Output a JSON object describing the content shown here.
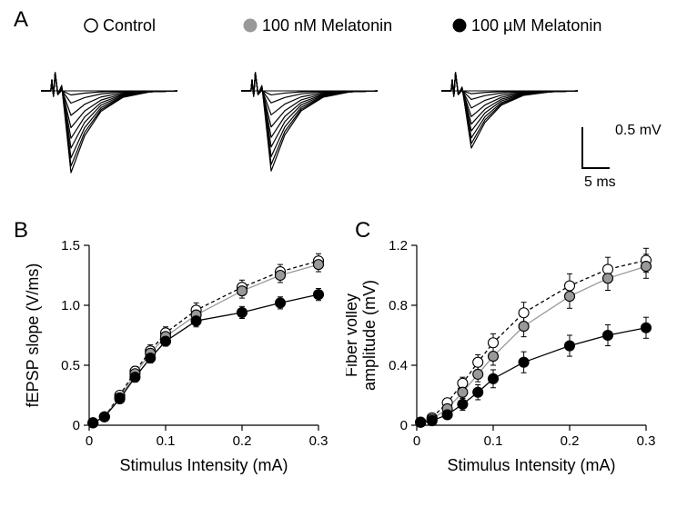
{
  "legend": {
    "items": [
      {
        "label": "Control",
        "fill": "#ffffff",
        "stroke": "#000000"
      },
      {
        "label": "100 nM Melatonin",
        "fill": "#999999",
        "stroke": "#999999"
      },
      {
        "label": "100 µM Melatonin",
        "fill": "#000000",
        "stroke": "#000000"
      }
    ],
    "fontsize": 18,
    "marker_radius": 7
  },
  "panels": {
    "A": {
      "label": "A"
    },
    "B": {
      "label": "B",
      "type": "scatter-line",
      "xlabel": "Stimulus Intensity (mA)",
      "ylabel": "fEPSP slope (V/ms)",
      "label_fontsize": 18,
      "tick_fontsize": 15,
      "xlim": [
        0,
        0.3
      ],
      "ylim": [
        0,
        1.5
      ],
      "xticks": [
        0,
        0.1,
        0.2,
        0.3
      ],
      "yticks": [
        0,
        0.5,
        1.0,
        1.5
      ],
      "marker_radius": 5.5,
      "series": [
        {
          "name": "control",
          "fill": "#ffffff",
          "stroke_line": "#000000",
          "line_dash": "4,3",
          "x": [
            0.005,
            0.02,
            0.04,
            0.06,
            0.08,
            0.1,
            0.14,
            0.2,
            0.25,
            0.3
          ],
          "y": [
            0.02,
            0.07,
            0.25,
            0.45,
            0.62,
            0.77,
            0.96,
            1.15,
            1.28,
            1.37
          ],
          "err": [
            0.02,
            0.02,
            0.03,
            0.04,
            0.05,
            0.05,
            0.06,
            0.06,
            0.06,
            0.06
          ]
        },
        {
          "name": "100nM",
          "fill": "#999999",
          "stroke_line": "#999999",
          "line_dash": "",
          "x": [
            0.005,
            0.02,
            0.04,
            0.06,
            0.08,
            0.1,
            0.14,
            0.2,
            0.25,
            0.3
          ],
          "y": [
            0.02,
            0.07,
            0.23,
            0.43,
            0.6,
            0.74,
            0.92,
            1.12,
            1.25,
            1.34
          ],
          "err": [
            0.02,
            0.02,
            0.03,
            0.04,
            0.05,
            0.05,
            0.06,
            0.06,
            0.06,
            0.06
          ]
        },
        {
          "name": "100uM",
          "fill": "#000000",
          "stroke_line": "#000000",
          "line_dash": "",
          "x": [
            0.005,
            0.02,
            0.04,
            0.06,
            0.08,
            0.1,
            0.14,
            0.2,
            0.25,
            0.3
          ],
          "y": [
            0.02,
            0.07,
            0.22,
            0.4,
            0.56,
            0.7,
            0.87,
            0.94,
            1.02,
            1.09
          ],
          "err": [
            0.02,
            0.02,
            0.03,
            0.04,
            0.04,
            0.04,
            0.05,
            0.05,
            0.05,
            0.05
          ]
        }
      ]
    },
    "C": {
      "label": "C",
      "type": "scatter-line",
      "xlabel": "Stimulus Intensity (mA)",
      "ylabel": "Fiber volley\namplitude (mV)",
      "label_fontsize": 18,
      "tick_fontsize": 15,
      "xlim": [
        0,
        0.3
      ],
      "ylim": [
        0,
        1.2
      ],
      "xticks": [
        0,
        0.1,
        0.2,
        0.3
      ],
      "yticks": [
        0,
        0.4,
        0.8,
        1.2
      ],
      "marker_radius": 5.5,
      "series": [
        {
          "name": "control",
          "fill": "#ffffff",
          "stroke_line": "#000000",
          "line_dash": "4,3",
          "x": [
            0.005,
            0.02,
            0.04,
            0.06,
            0.08,
            0.1,
            0.14,
            0.2,
            0.25,
            0.3
          ],
          "y": [
            0.02,
            0.05,
            0.15,
            0.28,
            0.42,
            0.55,
            0.75,
            0.93,
            1.04,
            1.1
          ],
          "err": [
            0.02,
            0.02,
            0.03,
            0.04,
            0.05,
            0.06,
            0.07,
            0.08,
            0.08,
            0.08
          ]
        },
        {
          "name": "100nM",
          "fill": "#999999",
          "stroke_line": "#999999",
          "line_dash": "",
          "x": [
            0.005,
            0.02,
            0.04,
            0.06,
            0.08,
            0.1,
            0.14,
            0.2,
            0.25,
            0.3
          ],
          "y": [
            0.02,
            0.04,
            0.11,
            0.22,
            0.34,
            0.46,
            0.66,
            0.86,
            0.98,
            1.06
          ],
          "err": [
            0.02,
            0.02,
            0.03,
            0.04,
            0.05,
            0.06,
            0.07,
            0.08,
            0.08,
            0.08
          ]
        },
        {
          "name": "100uM",
          "fill": "#000000",
          "stroke_line": "#000000",
          "line_dash": "",
          "x": [
            0.005,
            0.02,
            0.04,
            0.06,
            0.08,
            0.1,
            0.14,
            0.2,
            0.25,
            0.3
          ],
          "y": [
            0.02,
            0.03,
            0.07,
            0.14,
            0.22,
            0.31,
            0.42,
            0.53,
            0.6,
            0.65
          ],
          "err": [
            0.02,
            0.02,
            0.03,
            0.04,
            0.05,
            0.06,
            0.07,
            0.07,
            0.07,
            0.07
          ]
        }
      ]
    }
  },
  "traces": {
    "scalebar": {
      "x_ms": 5,
      "y_mv": 0.5,
      "x_label": "5 ms",
      "y_label": "0.5 mV",
      "fontsize": 16
    }
  },
  "colors": {
    "background": "#ffffff",
    "axis": "#000000",
    "text": "#000000"
  }
}
